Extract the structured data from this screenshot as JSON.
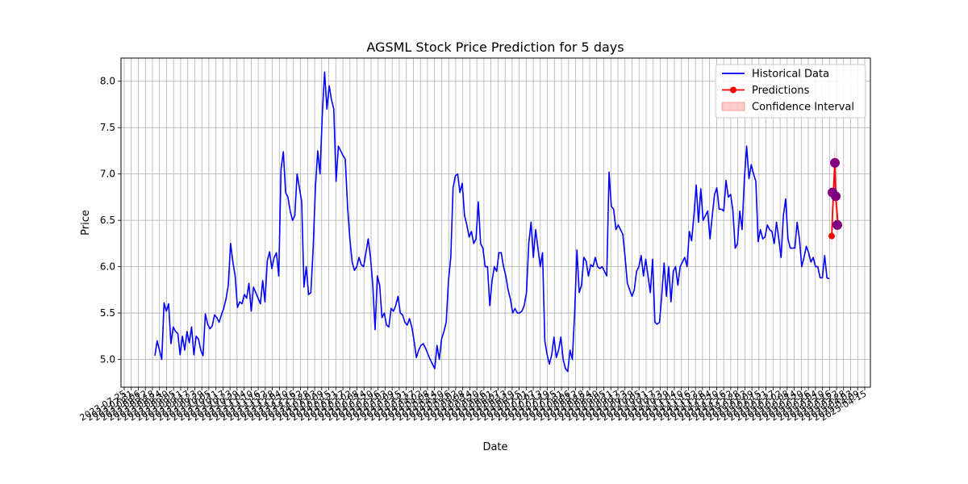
{
  "chart_data": {
    "type": "line",
    "title": "AGSML Stock Price Prediction for 5 days",
    "xlabel": "Date",
    "ylabel": "Price",
    "ylim": [
      4.7,
      8.25
    ],
    "yticks": [
      5.0,
      5.5,
      6.0,
      6.5,
      7.0,
      7.5,
      8.0
    ],
    "grid": true,
    "legend_position": "top-right",
    "colors": {
      "historical": "#0000ff",
      "predictions": "#ff0000",
      "confidence": "#ff0000",
      "prediction_markers": "#800080"
    },
    "legend": [
      {
        "label": "Historical Data",
        "kind": "line",
        "color": "#0000ff"
      },
      {
        "label": "Predictions",
        "kind": "line-marker",
        "color": "#ff0000"
      },
      {
        "label": "Confidence Interval",
        "kind": "patch",
        "color": "#ff0000"
      }
    ],
    "series": [
      {
        "name": "Historical Data",
        "values": [
          5.04,
          5.2,
          5.1,
          5.0,
          5.61,
          5.52,
          5.6,
          5.17,
          5.35,
          5.3,
          5.28,
          5.05,
          5.25,
          5.1,
          5.3,
          5.18,
          5.35,
          5.05,
          5.25,
          5.22,
          5.1,
          5.04,
          5.49,
          5.38,
          5.33,
          5.36,
          5.48,
          5.45,
          5.4,
          5.48,
          5.55,
          5.65,
          5.8,
          6.25,
          6.05,
          5.9,
          5.56,
          5.62,
          5.6,
          5.7,
          5.66,
          5.82,
          5.52,
          5.78,
          5.72,
          5.66,
          5.6,
          5.85,
          5.62,
          6.06,
          6.16,
          5.98,
          6.1,
          6.15,
          5.9,
          7.05,
          7.24,
          6.8,
          6.75,
          6.6,
          6.5,
          6.55,
          7.0,
          6.85,
          6.7,
          5.78,
          6.0,
          5.7,
          5.72,
          6.2,
          6.86,
          7.25,
          7.0,
          7.65,
          8.1,
          7.7,
          7.95,
          7.8,
          7.7,
          6.92,
          7.3,
          7.25,
          7.2,
          7.16,
          6.65,
          6.3,
          6.05,
          5.96,
          6.0,
          6.1,
          6.02,
          6.0,
          6.15,
          6.3,
          6.1,
          5.8,
          5.32,
          5.9,
          5.8,
          5.45,
          5.5,
          5.37,
          5.35,
          5.55,
          5.52,
          5.58,
          5.68,
          5.5,
          5.48,
          5.4,
          5.37,
          5.44,
          5.35,
          5.2,
          5.02,
          5.1,
          5.15,
          5.17,
          5.12,
          5.06,
          5.0,
          4.95,
          4.9,
          5.15,
          5.0,
          5.22,
          5.3,
          5.4,
          5.85,
          6.1,
          6.85,
          6.98,
          7.0,
          6.8,
          6.9,
          6.55,
          6.45,
          6.32,
          6.38,
          6.25,
          6.3,
          6.7,
          6.25,
          6.2,
          6.0,
          6.0,
          5.58,
          5.85,
          6.0,
          5.95,
          6.15,
          6.15,
          6.0,
          5.9,
          5.75,
          5.65,
          5.5,
          5.55,
          5.5,
          5.5,
          5.52,
          5.58,
          5.72,
          6.25,
          6.48,
          6.1,
          6.4,
          6.2,
          6.0,
          6.15,
          5.2,
          5.05,
          4.95,
          5.05,
          5.24,
          5.02,
          5.1,
          5.24,
          5.0,
          4.9,
          4.87,
          5.1,
          5.0,
          5.5,
          6.18,
          5.72,
          5.8,
          6.1,
          6.06,
          5.9,
          6.02,
          6.0,
          6.1,
          6.0,
          5.98,
          6.0,
          5.95,
          5.9,
          7.02,
          6.65,
          6.62,
          6.4,
          6.45,
          6.4,
          6.35,
          6.1,
          5.82,
          5.75,
          5.68,
          5.75,
          5.95,
          6.0,
          6.12,
          5.9,
          6.08,
          5.9,
          5.72,
          6.08,
          5.4,
          5.38,
          5.4,
          5.7,
          6.04,
          5.68,
          6.0,
          5.62,
          5.95,
          6.0,
          5.8,
          6.0,
          6.05,
          6.1,
          6.0,
          6.38,
          6.28,
          6.55,
          6.88,
          6.48,
          6.84,
          6.5,
          6.55,
          6.6,
          6.3,
          6.55,
          6.78,
          6.85,
          6.62,
          6.62,
          6.6,
          6.93,
          6.75,
          6.78,
          6.6,
          6.2,
          6.25,
          6.6,
          6.4,
          6.95,
          7.3,
          6.95,
          7.1,
          7.0,
          6.92,
          6.27,
          6.4,
          6.3,
          6.32,
          6.45,
          6.4,
          6.38,
          6.25,
          6.48,
          6.3,
          6.1,
          6.55,
          6.73,
          6.3,
          6.2,
          6.2,
          6.2,
          6.48,
          6.3,
          6.0,
          6.1,
          6.22,
          6.15,
          6.05,
          6.1,
          6.0,
          6.0,
          5.88,
          5.88,
          6.12,
          5.88,
          5.87
        ]
      },
      {
        "name": "Predictions",
        "values": [
          6.33,
          6.78,
          7.12,
          6.75,
          6.45
        ],
        "lower": [
          6.15,
          6.5,
          6.9,
          6.5,
          6.3
        ],
        "upper": [
          6.5,
          7.05,
          7.3,
          7.0,
          6.6
        ]
      }
    ],
    "prediction_markers": [
      6.8,
      7.12,
      6.76,
      6.45
    ],
    "xtick_labels": [
      "2023-07-25",
      "2023-07-31",
      "2023-08-06",
      "2023-08-12",
      "2023-08-18",
      "2023-08-24",
      "2023-08-30",
      "2023-09-05",
      "2023-09-11",
      "2023-09-17",
      "2023-09-23",
      "2023-09-29",
      "2023-10-05",
      "2023-10-11",
      "2023-10-17",
      "2023-10-23",
      "2023-10-29",
      "2023-11-04",
      "2023-11-10",
      "2023-11-16",
      "2023-11-22",
      "2023-11-28",
      "2023-12-04",
      "2023-12-10",
      "2023-12-16",
      "2023-12-22",
      "2023-12-28",
      "2024-01-03",
      "2024-01-09",
      "2024-01-15",
      "2024-01-21",
      "2024-01-27",
      "2024-02-02",
      "2024-02-08",
      "2024-02-14",
      "2024-02-20",
      "2024-02-26",
      "2024-03-03",
      "2024-03-09",
      "2024-03-15",
      "2024-03-21",
      "2024-03-27",
      "2024-04-02",
      "2024-04-08",
      "2024-04-14",
      "2024-04-20",
      "2024-04-26",
      "2024-05-02",
      "2024-05-08",
      "2024-05-14",
      "2024-05-20",
      "2024-05-26",
      "2024-06-01",
      "2024-06-07",
      "2024-06-13",
      "2024-06-19",
      "2024-06-25",
      "2024-07-01",
      "2024-07-07",
      "2024-07-13",
      "2024-07-19",
      "2024-07-25",
      "2024-07-31",
      "2024-08-06",
      "2024-08-12",
      "2024-08-18",
      "2024-08-24",
      "2024-08-30",
      "2024-09-05",
      "2024-09-11",
      "2024-09-17",
      "2024-09-23",
      "2024-09-29",
      "2024-10-05",
      "2024-10-11",
      "2024-10-17",
      "2024-10-23",
      "2024-10-29",
      "2024-11-04",
      "2024-11-10",
      "2024-11-16",
      "2024-11-22",
      "2024-11-28",
      "2024-12-04",
      "2024-12-10",
      "2024-12-16",
      "2024-12-22",
      "2024-12-28",
      "2025-01-03",
      "2025-01-09",
      "2025-01-15",
      "2025-01-21",
      "2025-01-27",
      "2025-02-02",
      "2025-02-08",
      "2025-02-14",
      "2025-02-20",
      "2025-02-26",
      "2025-03-04",
      "2025-03-10",
      "2025-03-16",
      "2025-03-22",
      "2025-03-28",
      "2025-04-03",
      "2025-04-09",
      "2025-04-15"
    ]
  }
}
